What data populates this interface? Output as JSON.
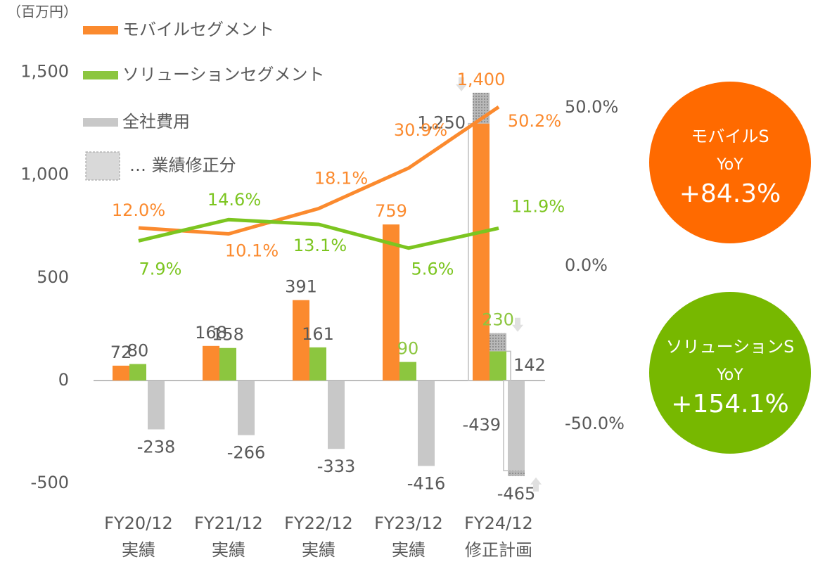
{
  "chart_data": {
    "type": "bar",
    "unit_label": "（百万円）",
    "categories": [
      [
        "FY20/12",
        "実績"
      ],
      [
        "FY21/12",
        "実績"
      ],
      [
        "FY22/12",
        "実績"
      ],
      [
        "FY23/12",
        "実績"
      ],
      [
        "FY24/12",
        "修正計画"
      ]
    ],
    "ylim": [
      -500,
      1500
    ],
    "yticks": [
      -500,
      0,
      500,
      {
        "value": 1000,
        "label": "1,000"
      },
      {
        "value": 1500,
        "label": "1,500"
      }
    ],
    "y2lim": [
      -68.7,
      61.2
    ],
    "y2ticks": [
      {
        "value": -50,
        "label": "-50.0%"
      },
      {
        "value": 0,
        "label": "0.0%"
      },
      {
        "value": 50,
        "label": "50.0%"
      }
    ],
    "series": [
      {
        "name": "モバイルセグメント",
        "color": "#fb8a2e",
        "values": [
          72,
          168,
          391,
          759,
          1400
        ],
        "value_labels": [
          "72",
          "168",
          "391",
          "759",
          "1,400"
        ],
        "revision": {
          "index": 4,
          "from": 1250,
          "from_label": "1,250"
        }
      },
      {
        "name": "ソリューションセグメント",
        "color": "#8cc63f",
        "values": [
          80,
          158,
          161,
          90,
          230
        ],
        "value_labels": [
          "80",
          "158",
          "161",
          "90",
          "230"
        ],
        "revision": {
          "index": 4,
          "from": 142,
          "from_label": "142"
        }
      },
      {
        "name": "全社費用",
        "color": "#c8c8c8",
        "values": [
          -238,
          -266,
          -333,
          -416,
          -465
        ],
        "value_labels": [
          "-238",
          "-266",
          "-333",
          "-416",
          "-465"
        ],
        "revision": {
          "index": 4,
          "from": -439,
          "from_label": "-439"
        }
      }
    ],
    "lines": [
      {
        "type": "line",
        "axis": "y2",
        "color": "#fb8a2e",
        "values": [
          12.0,
          10.1,
          18.1,
          30.9,
          50.2
        ],
        "value_labels": [
          "12.0%",
          "10.1%",
          "18.1%",
          "30.9%",
          "50.2%"
        ]
      },
      {
        "type": "line",
        "axis": "y2",
        "color": "#7cc520",
        "values": [
          7.9,
          14.6,
          13.1,
          5.6,
          11.9
        ],
        "value_labels": [
          "7.9%",
          "14.6%",
          "13.1%",
          "5.6%",
          "11.9%"
        ]
      }
    ],
    "revision_legend": "… 業績修正分",
    "callouts": [
      {
        "lines": [
          "モバイルS",
          "YoY",
          "+84.3%"
        ],
        "color": "#ff6a00"
      },
      {
        "lines": [
          "ソリューションS",
          "YoY",
          "+154.1%"
        ],
        "color": "#77b800"
      }
    ]
  }
}
